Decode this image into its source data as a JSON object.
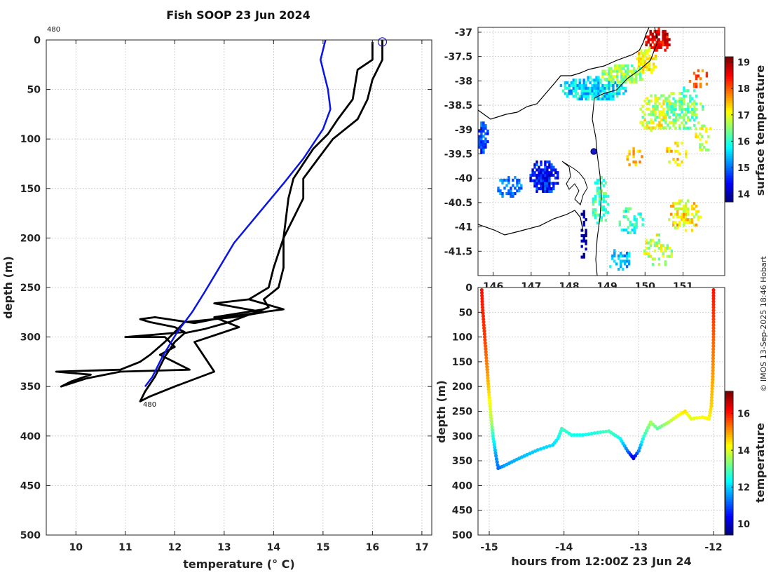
{
  "figure": {
    "title": "Fish SOOP 23 Jun 2024",
    "credit": "© IMOS 13-Sep-2025 18:46 Hobart",
    "start_label": "480",
    "end_label": "480"
  },
  "colors": {
    "profile": "#000000",
    "climatology": "#0a14e6",
    "marker": "#1a1acc",
    "coast": "#000000"
  },
  "chart_data": [
    {
      "type": "line",
      "name": "profile",
      "xlabel": "temperature (° C)",
      "ylabel": "depth (m)",
      "xlim": [
        9.4,
        17.2
      ],
      "ylim": [
        500,
        0
      ],
      "xticks": [
        10,
        11,
        12,
        13,
        14,
        15,
        16,
        17
      ],
      "yticks": [
        0,
        50,
        100,
        150,
        200,
        250,
        300,
        350,
        400,
        450,
        500
      ],
      "grid": true,
      "series": [
        {
          "name": "down cast",
          "color": "profile",
          "points": [
            [
              16.0,
              2
            ],
            [
              16.0,
              20
            ],
            [
              15.7,
              30
            ],
            [
              15.6,
              60
            ],
            [
              15.3,
              80
            ],
            [
              15.1,
              95
            ],
            [
              14.8,
              110
            ],
            [
              14.6,
              125
            ],
            [
              14.4,
              140
            ],
            [
              14.3,
              160
            ],
            [
              14.2,
              200
            ],
            [
              14.0,
              230
            ],
            [
              13.9,
              250
            ],
            [
              13.5,
              262
            ],
            [
              12.8,
              266
            ],
            [
              13.8,
              275
            ],
            [
              13.2,
              280
            ],
            [
              12.2,
              285
            ],
            [
              12.0,
              295
            ],
            [
              11.8,
              305
            ],
            [
              11.5,
              318
            ],
            [
              11.3,
              325
            ],
            [
              10.9,
              333
            ],
            [
              9.6,
              335
            ],
            [
              10.3,
              338
            ],
            [
              9.9,
              345
            ],
            [
              9.7,
              350
            ],
            [
              10.2,
              342
            ],
            [
              10.9,
              335
            ],
            [
              12.3,
              333
            ],
            [
              11.7,
              318
            ],
            [
              12.0,
              310
            ],
            [
              11.8,
              300
            ],
            [
              11.4,
              300
            ],
            [
              11.0,
              300
            ],
            [
              11.5,
              298
            ],
            [
              12.2,
              295
            ],
            [
              12.0,
              290
            ],
            [
              11.5,
              285
            ],
            [
              11.3,
              282
            ],
            [
              11.6,
              280
            ],
            [
              12.4,
              286
            ],
            [
              13.0,
              280
            ],
            [
              14.2,
              272
            ],
            [
              13.5,
              262
            ]
          ]
        },
        {
          "name": "up cast",
          "color": "profile",
          "points": [
            [
              16.2,
              0
            ],
            [
              16.2,
              20
            ],
            [
              16.0,
              40
            ],
            [
              15.9,
              60
            ],
            [
              15.7,
              80
            ],
            [
              15.2,
              100
            ],
            [
              14.9,
              120
            ],
            [
              14.6,
              140
            ],
            [
              14.6,
              160
            ],
            [
              14.4,
              180
            ],
            [
              14.2,
              200
            ],
            [
              14.2,
              230
            ],
            [
              14.1,
              250
            ],
            [
              13.8,
              262
            ],
            [
              13.9,
              270
            ],
            [
              13.1,
              285
            ],
            [
              12.6,
              292
            ],
            [
              12.2,
              296
            ],
            [
              12.0,
              305
            ],
            [
              11.8,
              320
            ],
            [
              11.6,
              340
            ],
            [
              11.4,
              355
            ],
            [
              11.3,
              365
            ],
            [
              11.5,
              360
            ],
            [
              12.0,
              350
            ],
            [
              12.8,
              335
            ],
            [
              12.6,
              320
            ],
            [
              12.4,
              305
            ],
            [
              13.3,
              290
            ],
            [
              12.8,
              280
            ],
            [
              13.8,
              272
            ]
          ]
        },
        {
          "name": "climatology",
          "color": "climatology",
          "points": [
            [
              15.05,
              0
            ],
            [
              14.95,
              20
            ],
            [
              15.1,
              50
            ],
            [
              15.15,
              70
            ],
            [
              15.0,
              90
            ],
            [
              14.6,
              120
            ],
            [
              14.2,
              145
            ],
            [
              13.7,
              175
            ],
            [
              13.2,
              205
            ],
            [
              12.9,
              230
            ],
            [
              12.6,
              255
            ],
            [
              12.35,
              275
            ],
            [
              12.05,
              295
            ],
            [
              11.75,
              320
            ],
            [
              11.55,
              340
            ],
            [
              11.4,
              350
            ]
          ]
        }
      ],
      "marker": {
        "x": 16.2,
        "y": 2
      }
    },
    {
      "type": "heatmap",
      "name": "surface temperature map",
      "xlim": [
        145.6,
        152.1
      ],
      "ylim": [
        -42.0,
        -36.9
      ],
      "xticks": [
        146,
        147,
        148,
        149,
        150,
        151
      ],
      "yticks": [
        -37,
        -37.5,
        -38,
        -38.5,
        -39,
        -39.5,
        -40,
        -40.5,
        -41,
        -41.5
      ],
      "colorbar": {
        "label": "surface temperature",
        "range": [
          13.7,
          19.2
        ],
        "ticks": [
          14,
          15,
          16,
          17,
          18,
          19
        ]
      },
      "ship_position": {
        "lon": 148.65,
        "lat": -39.45
      }
    },
    {
      "type": "scatter",
      "name": "depth section",
      "xlabel": "hours from 12:00Z 23 Jun 24",
      "ylabel": "depth (m)",
      "xlim": [
        -15.15,
        -11.85
      ],
      "ylim": [
        500,
        0
      ],
      "xticks": [
        -15,
        -14,
        -13,
        -12
      ],
      "yticks": [
        0,
        50,
        100,
        150,
        200,
        250,
        300,
        350,
        400,
        450,
        500
      ],
      "colorbar": {
        "label": "temperature",
        "range": [
          9.4,
          17.2
        ],
        "ticks": [
          10,
          12,
          14,
          16
        ]
      },
      "track": [
        [
          -15.1,
          5,
          16.1
        ],
        [
          -15.09,
          40,
          16.0
        ],
        [
          -15.06,
          100,
          15.8
        ],
        [
          -15.03,
          160,
          15.2
        ],
        [
          -15.01,
          200,
          14.7
        ],
        [
          -14.99,
          240,
          14.1
        ],
        [
          -14.97,
          270,
          13.7
        ],
        [
          -14.95,
          300,
          12.6
        ],
        [
          -14.91,
          340,
          11.6
        ],
        [
          -14.88,
          365,
          11.2
        ],
        [
          -14.8,
          360,
          11.6
        ],
        [
          -14.6,
          345,
          11.8
        ],
        [
          -14.35,
          328,
          12.0
        ],
        [
          -14.15,
          318,
          12.1
        ],
        [
          -14.08,
          305,
          12.3
        ],
        [
          -14.03,
          285,
          12.8
        ],
        [
          -13.9,
          298,
          12.5
        ],
        [
          -13.75,
          298,
          12.4
        ],
        [
          -13.55,
          293,
          12.6
        ],
        [
          -13.4,
          290,
          12.9
        ],
        [
          -13.25,
          305,
          12.4
        ],
        [
          -13.15,
          330,
          11.3
        ],
        [
          -13.07,
          345,
          10.1
        ],
        [
          -13.0,
          330,
          11.4
        ],
        [
          -12.93,
          300,
          12.7
        ],
        [
          -12.84,
          272,
          13.6
        ],
        [
          -12.75,
          285,
          13.0
        ],
        [
          -12.6,
          272,
          13.7
        ],
        [
          -12.47,
          258,
          14.2
        ],
        [
          -12.38,
          250,
          14.5
        ],
        [
          -12.3,
          265,
          14.0
        ],
        [
          -12.15,
          262,
          14.3
        ],
        [
          -12.06,
          265,
          14.3
        ],
        [
          -12.03,
          240,
          14.6
        ],
        [
          -12.01,
          180,
          15.0
        ],
        [
          -12.0,
          100,
          15.5
        ],
        [
          -12.0,
          40,
          15.9
        ],
        [
          -12.0,
          5,
          16.1
        ]
      ]
    }
  ]
}
